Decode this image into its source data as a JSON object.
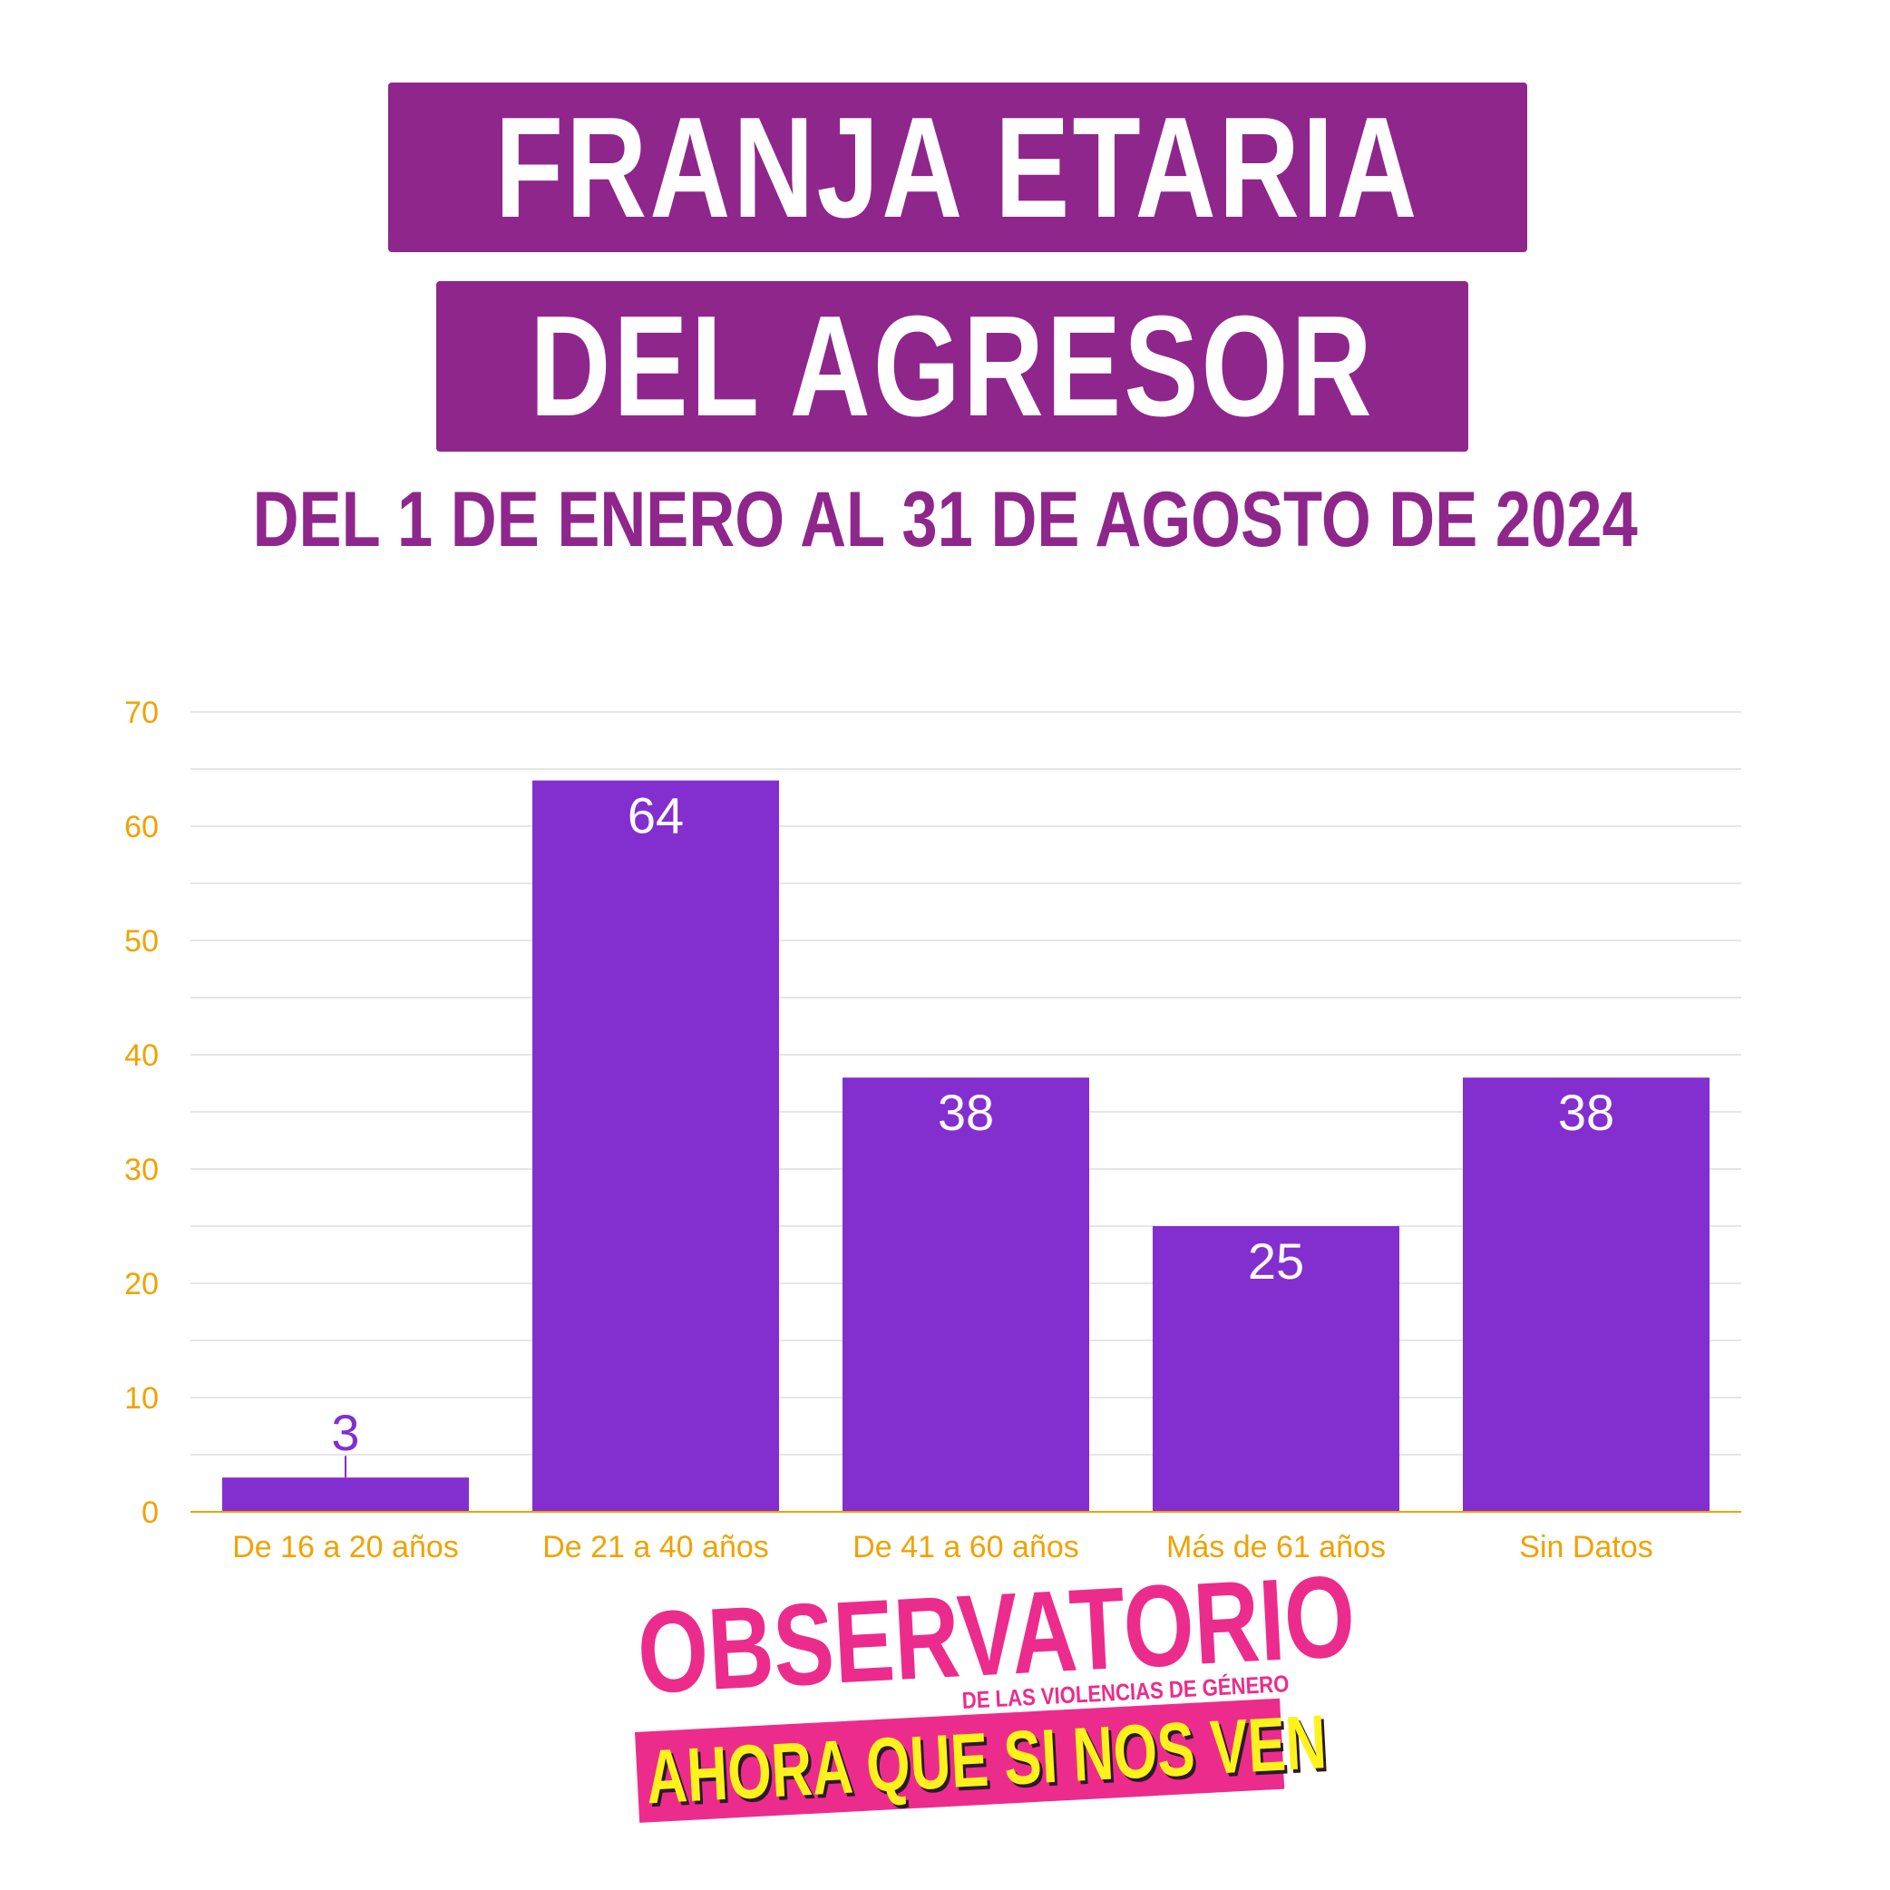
{
  "header": {
    "title_line1": "FRANJA ETARIA",
    "title_line2": "DEL AGRESOR",
    "subtitle": "DEL 1 DE ENERO AL 31 DE AGOSTO DE 2024"
  },
  "colors": {
    "title_bg": "#8e268c",
    "bar": "#832ecf",
    "axis_text": "#f0a202",
    "logo_pink": "#ec2c8c",
    "logo_yellow": "#fff21c"
  },
  "chart_data": {
    "type": "bar",
    "categories": [
      "De 16 a 20 años",
      "De 21 a 40 años",
      "De 41 a 60 años",
      "Más de 61 años",
      "Sin Datos"
    ],
    "values": [
      3,
      64,
      38,
      25,
      38
    ],
    "data_labels": [
      "3",
      "64",
      "38",
      "25",
      "38"
    ],
    "yticks": [
      0,
      10,
      20,
      30,
      40,
      50,
      60,
      70
    ],
    "ylim": [
      0,
      70
    ],
    "minor_gridlines": true,
    "legend": "none"
  },
  "logo": {
    "word": "OBSERVATORIO",
    "subline": "DE LAS VIOLENCIAS DE GÉNERO",
    "slogan": "AHORA QUE SI NOS VEN"
  }
}
